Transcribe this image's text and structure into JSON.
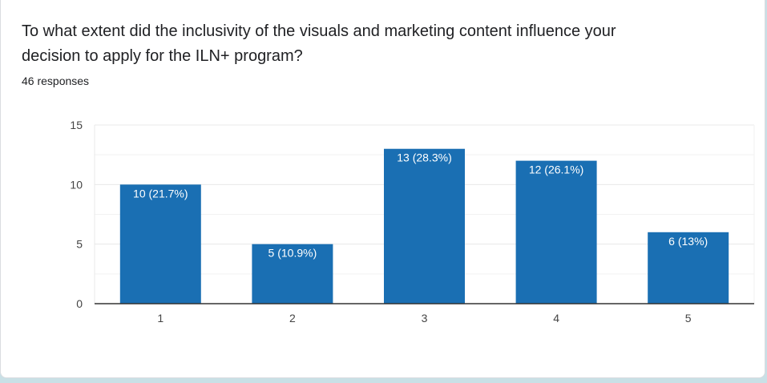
{
  "question": {
    "text": "To what extent did the inclusivity of the visuals and marketing content influence your decision to apply for the ILN+ program?",
    "response_count": "46 responses"
  },
  "colors": {
    "bar": "#1a6fb3",
    "grid": "#e8e8e8",
    "axis": "#333333",
    "label_text": "#ffffff",
    "tick_text": "#444444"
  },
  "chart_data": {
    "type": "bar",
    "title": "",
    "xlabel": "",
    "ylabel": "",
    "categories": [
      "1",
      "2",
      "3",
      "4",
      "5"
    ],
    "values": [
      10,
      5,
      13,
      12,
      6
    ],
    "data_labels": [
      "10 (21.7%)",
      "5 (10.9%)",
      "13 (28.3%)",
      "12 (26.1%)",
      "6 (13%)"
    ],
    "ylim": [
      0,
      15
    ],
    "yticks": [
      0,
      5,
      10,
      15
    ],
    "minor_gridlines": [
      2.5,
      7.5,
      12.5
    ],
    "grid": true
  }
}
